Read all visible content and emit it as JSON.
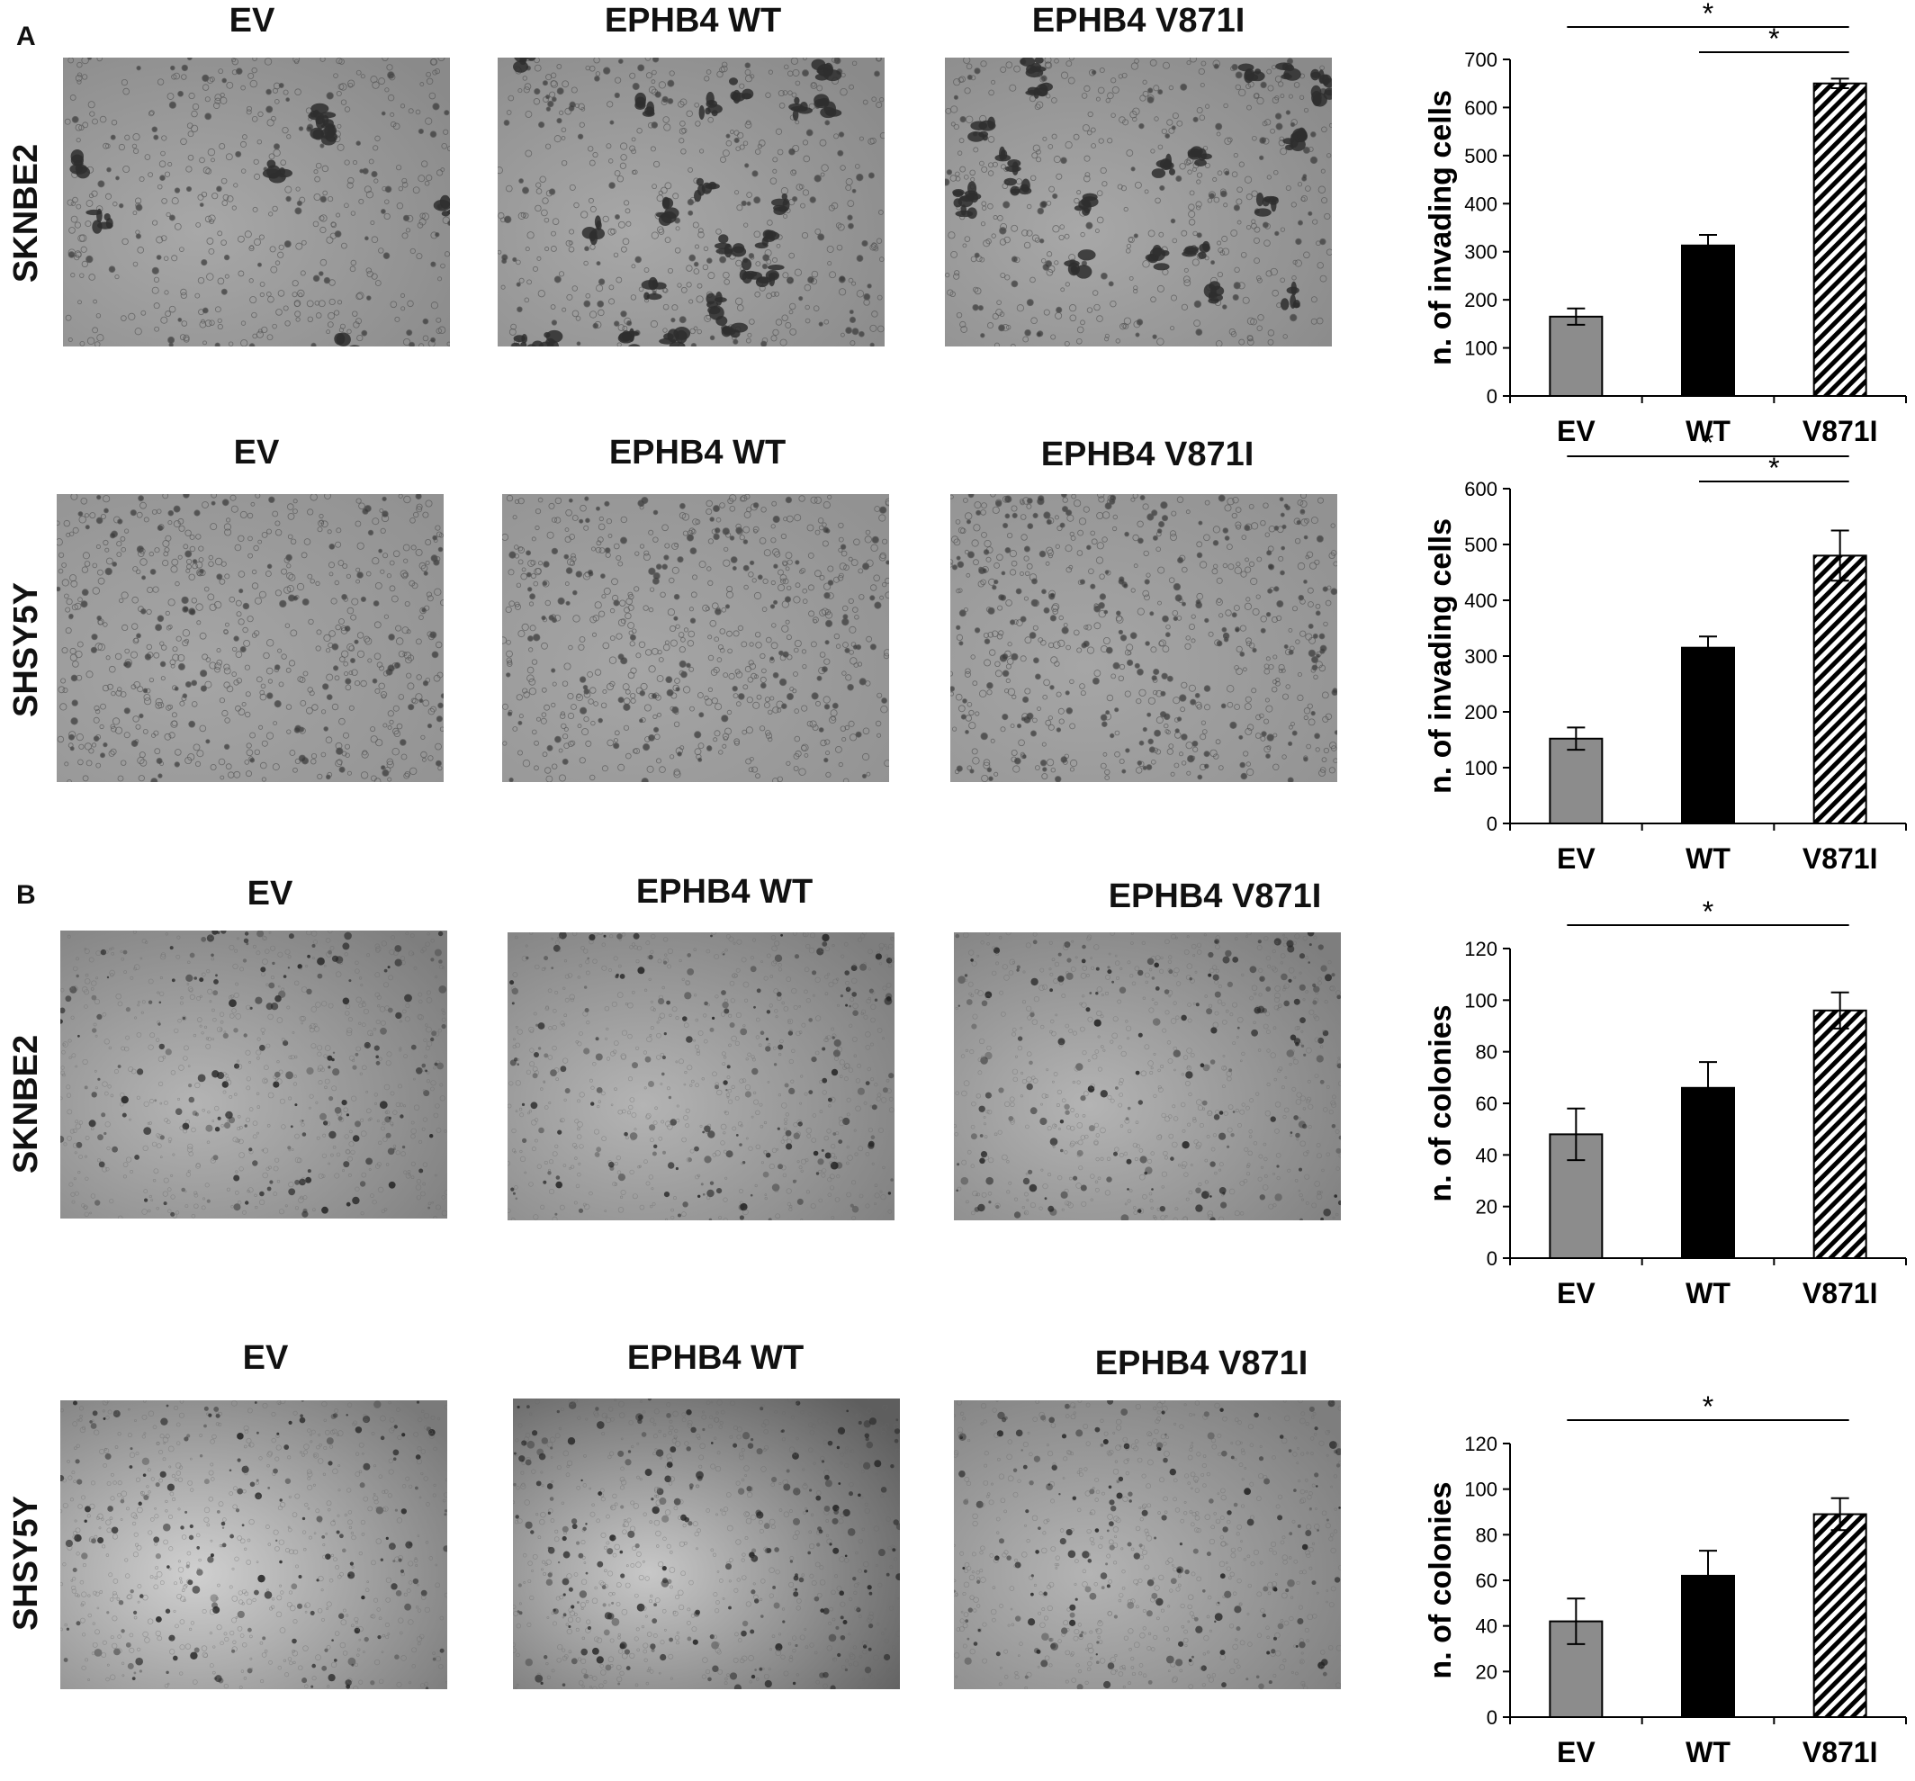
{
  "panels": [
    {
      "letter": "A"
    },
    {
      "letter": "B"
    }
  ],
  "rows": [
    {
      "cell_line": "SKNBE2",
      "columns": [
        "EV",
        "EPHB4 WT",
        "EPHB4 V871I"
      ],
      "chart_data": {
        "type": "bar",
        "categories": [
          "EV",
          "WT",
          "V871I"
        ],
        "values": [
          165,
          313,
          650
        ],
        "errors": [
          17,
          22,
          10
        ],
        "ylabel": "n. of invading cells",
        "ylim": [
          0,
          700
        ],
        "yticks": [
          0,
          100,
          200,
          300,
          400,
          500,
          600,
          700
        ],
        "bar_fills": [
          "gray",
          "black",
          "hatched"
        ],
        "significance": [
          {
            "from": "EV",
            "to": "V871I",
            "label": "*"
          },
          {
            "from": "WT",
            "to": "V871I",
            "label": "*"
          }
        ]
      }
    },
    {
      "cell_line": "SHSY5Y",
      "columns": [
        "EV",
        "EPHB4 WT",
        "EPHB4 V871I"
      ],
      "chart_data": {
        "type": "bar",
        "categories": [
          "EV",
          "WT",
          "V871I"
        ],
        "values": [
          152,
          315,
          480
        ],
        "errors": [
          20,
          20,
          45
        ],
        "ylabel": "n. of invading cells",
        "ylim": [
          0,
          600
        ],
        "yticks": [
          0,
          100,
          200,
          300,
          400,
          500,
          600
        ],
        "bar_fills": [
          "gray",
          "black",
          "hatched"
        ],
        "significance": [
          {
            "from": "EV",
            "to": "V871I",
            "label": "*"
          },
          {
            "from": "WT",
            "to": "V871I",
            "label": "*"
          }
        ]
      }
    },
    {
      "cell_line": "SKNBE2",
      "columns": [
        "EV",
        "EPHB4 WT",
        "EPHB4 V871I"
      ],
      "chart_data": {
        "type": "bar",
        "categories": [
          "EV",
          "WT",
          "V871I"
        ],
        "values": [
          48,
          66,
          96
        ],
        "errors": [
          10,
          10,
          7
        ],
        "ylabel": "n. of colonies",
        "ylim": [
          0,
          120
        ],
        "yticks": [
          0,
          20,
          40,
          60,
          80,
          100,
          120
        ],
        "bar_fills": [
          "gray",
          "black",
          "hatched"
        ],
        "significance": [
          {
            "from": "EV",
            "to": "V871I",
            "label": "*"
          }
        ]
      }
    },
    {
      "cell_line": "SHSY5Y",
      "columns": [
        "EV",
        "EPHB4 WT",
        "EPHB4 V871I"
      ],
      "chart_data": {
        "type": "bar",
        "categories": [
          "EV",
          "WT",
          "V871I"
        ],
        "values": [
          42,
          62,
          89
        ],
        "errors": [
          10,
          11,
          7
        ],
        "ylabel": "n. of colonies",
        "ylim": [
          0,
          120
        ],
        "yticks": [
          0,
          20,
          40,
          60,
          80,
          100,
          120
        ],
        "bar_fills": [
          "gray",
          "black",
          "hatched"
        ],
        "significance": [
          {
            "from": "EV",
            "to": "V871I",
            "label": "*"
          }
        ]
      }
    }
  ],
  "colors": {
    "gray_bar": "#8c8c8c",
    "black_bar": "#000000",
    "micro_bg": "#9a9a9a"
  }
}
